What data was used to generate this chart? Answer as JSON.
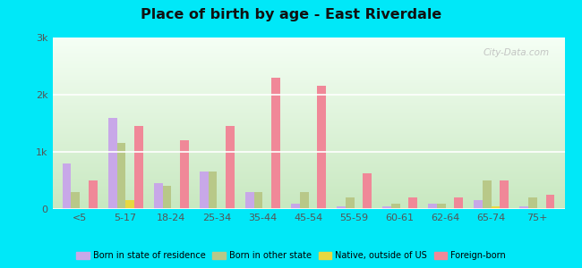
{
  "title": "Place of birth by age - East Riverdale",
  "categories": [
    "<5",
    "5-17",
    "18-24",
    "25-34",
    "35-44",
    "45-54",
    "55-59",
    "60-61",
    "62-64",
    "65-74",
    "75+"
  ],
  "series": {
    "Born in state of residence": [
      800,
      1600,
      450,
      650,
      300,
      100,
      50,
      50,
      100,
      150,
      50
    ],
    "Born in other state": [
      300,
      1150,
      400,
      650,
      300,
      300,
      200,
      100,
      100,
      500,
      200
    ],
    "Native, outside of US": [
      20,
      150,
      20,
      20,
      20,
      20,
      20,
      20,
      20,
      50,
      20
    ],
    "Foreign-born": [
      500,
      1450,
      1200,
      1450,
      2300,
      2150,
      620,
      200,
      200,
      500,
      250
    ]
  },
  "colors": {
    "Born in state of residence": "#c8a8e8",
    "Born in other state": "#b8c888",
    "Native, outside of US": "#e8d840",
    "Foreign-born": "#f08898"
  },
  "ylim": [
    0,
    3000
  ],
  "yticks": [
    0,
    1000,
    2000,
    3000
  ],
  "ytick_labels": [
    "0",
    "1k",
    "2k",
    "3k"
  ],
  "bg_bottom_color": "#c8e8c0",
  "bg_top_color": "#f0f8f0",
  "outer_background": "#00e8f8",
  "bar_width": 0.19,
  "legend_labels": [
    "Born in state of residence",
    "Born in other state",
    "Native, outside of US",
    "Foreign-born"
  ]
}
